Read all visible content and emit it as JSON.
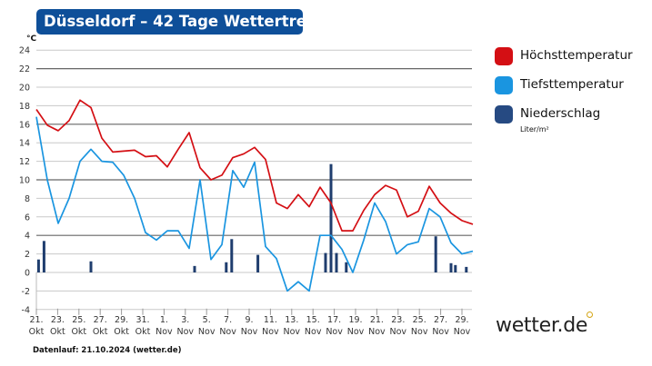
{
  "title": "Düsseldorf – 42 Tage Wettertrend",
  "footer": "Datenlauf: 21.10.2024 (wetter.de)",
  "logo": "wetter.de",
  "colors": {
    "max": "#d40f14",
    "min": "#1a95e0",
    "precip": "#1f3d6e",
    "title_bg": "#0e4f99"
  },
  "chart_data": {
    "type": "line",
    "title": "Düsseldorf – 42 Tage Wettertrend",
    "ylabel": "°C",
    "ylim": [
      -4,
      24
    ],
    "yticks": [
      -4,
      -2,
      0,
      2,
      4,
      6,
      8,
      10,
      12,
      14,
      16,
      18,
      20,
      22,
      24
    ],
    "xticks": [
      {
        "day": 0,
        "label": "21.",
        "month": "Okt"
      },
      {
        "day": 2,
        "label": "23.",
        "month": "Okt"
      },
      {
        "day": 4,
        "label": "25.",
        "month": "Okt"
      },
      {
        "day": 6,
        "label": "27.",
        "month": "Okt"
      },
      {
        "day": 8,
        "label": "29.",
        "month": "Okt"
      },
      {
        "day": 10,
        "label": "31.",
        "month": "Okt"
      },
      {
        "day": 11,
        "label": "1.",
        "month": "Nov"
      },
      {
        "day": 13,
        "label": "3.",
        "month": "Nov"
      },
      {
        "day": 15,
        "label": "5.",
        "month": "Nov"
      },
      {
        "day": 17,
        "label": "7.",
        "month": "Nov"
      },
      {
        "day": 19,
        "label": "9.",
        "month": "Nov"
      },
      {
        "day": 21,
        "label": "11.",
        "month": "Nov"
      },
      {
        "day": 23,
        "label": "13.",
        "month": "Nov"
      },
      {
        "day": 25,
        "label": "15.",
        "month": "Nov"
      },
      {
        "day": 27,
        "label": "17.",
        "month": "Nov"
      },
      {
        "day": 29,
        "label": "19.",
        "month": "Nov"
      },
      {
        "day": 31,
        "label": "21.",
        "month": "Nov"
      },
      {
        "day": 33,
        "label": "23.",
        "month": "Nov"
      },
      {
        "day": 35,
        "label": "25.",
        "month": "Nov"
      },
      {
        "day": 37,
        "label": "27.",
        "month": "Nov"
      },
      {
        "day": 39,
        "label": "29.",
        "month": "Nov"
      }
    ],
    "series": [
      {
        "name": "Höchsttemperatur",
        "values": [
          17.6,
          15.9,
          15.3,
          16.4,
          18.6,
          17.8,
          14.5,
          13.0,
          13.1,
          13.2,
          12.5,
          12.6,
          11.4,
          13.3,
          15.1,
          11.3,
          10.0,
          10.5,
          12.4,
          12.8,
          13.5,
          12.2,
          7.5,
          6.9,
          8.4,
          7.1,
          9.2,
          7.5,
          4.5,
          4.5,
          6.7,
          8.4,
          9.4,
          8.9,
          6.0,
          6.6,
          9.3,
          7.5,
          6.4,
          5.6,
          5.2
        ]
      },
      {
        "name": "Tiefsttemperatur",
        "values": [
          16.8,
          10.0,
          5.3,
          8.0,
          12.0,
          13.3,
          12.0,
          11.9,
          10.5,
          8.0,
          4.3,
          3.5,
          4.5,
          4.5,
          2.6,
          10.0,
          1.4,
          3.0,
          11.0,
          9.2,
          11.9,
          2.8,
          1.5,
          -2.0,
          -1.0,
          -2.0,
          4.0,
          4.0,
          2.5,
          0.0,
          3.5,
          7.5,
          5.5,
          2.0,
          3.0,
          3.3,
          6.9,
          6.0,
          3.2,
          2.0,
          2.3
        ]
      }
    ],
    "precipitation": {
      "name": "Niederschlag",
      "unit": "Liter/m²",
      "bars": [
        {
          "day": 0.2,
          "value": 1.4
        },
        {
          "day": 0.7,
          "value": 3.4
        },
        {
          "day": 5.0,
          "value": 1.2
        },
        {
          "day": 14.5,
          "value": 0.7
        },
        {
          "day": 17.4,
          "value": 1.1
        },
        {
          "day": 17.9,
          "value": 3.6
        },
        {
          "day": 20.3,
          "value": 1.9
        },
        {
          "day": 26.5,
          "value": 2.1
        },
        {
          "day": 27.0,
          "value": 11.7
        },
        {
          "day": 27.5,
          "value": 2.1
        },
        {
          "day": 28.4,
          "value": 1.1
        },
        {
          "day": 36.6,
          "value": 3.9
        },
        {
          "day": 38.0,
          "value": 1.0
        },
        {
          "day": 38.4,
          "value": 0.8
        },
        {
          "day": 39.4,
          "value": 0.6
        }
      ]
    },
    "legend": [
      "Höchsttemperatur",
      "Tiefsttemperatur",
      "Niederschlag"
    ],
    "legend_position": "right",
    "grid": true
  }
}
